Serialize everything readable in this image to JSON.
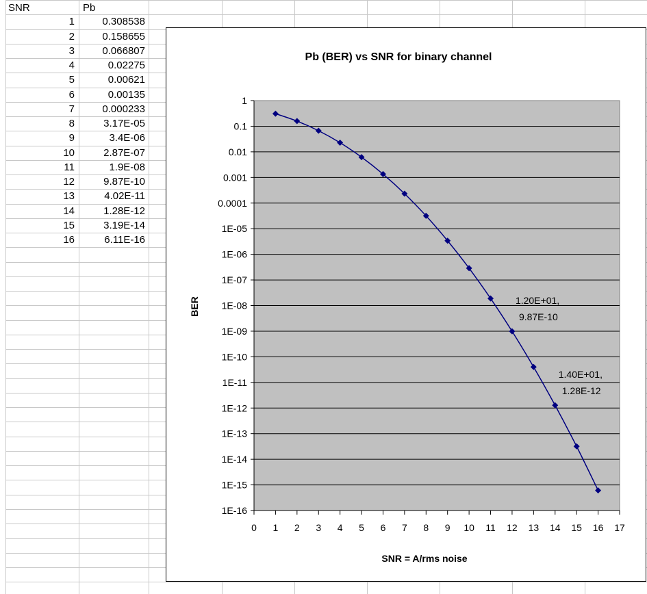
{
  "sheet": {
    "headers": {
      "a": "SNR",
      "b": "Pb"
    },
    "rows": [
      {
        "snr": "1",
        "pb": "0.308538"
      },
      {
        "snr": "2",
        "pb": "0.158655"
      },
      {
        "snr": "3",
        "pb": "0.066807"
      },
      {
        "snr": "4",
        "pb": "0.02275"
      },
      {
        "snr": "5",
        "pb": "0.00621"
      },
      {
        "snr": "6",
        "pb": "0.00135"
      },
      {
        "snr": "7",
        "pb": "0.000233"
      },
      {
        "snr": "8",
        "pb": "3.17E-05"
      },
      {
        "snr": "9",
        "pb": "3.4E-06"
      },
      {
        "snr": "10",
        "pb": "2.87E-07"
      },
      {
        "snr": "11",
        "pb": "1.9E-08"
      },
      {
        "snr": "12",
        "pb": "9.87E-10"
      },
      {
        "snr": "13",
        "pb": "4.02E-11"
      },
      {
        "snr": "14",
        "pb": "1.28E-12"
      },
      {
        "snr": "15",
        "pb": "3.19E-14"
      },
      {
        "snr": "16",
        "pb": "6.11E-16"
      }
    ]
  },
  "chart_data": {
    "type": "line",
    "title": "Pb (BER) vs SNR for binary channel",
    "xlabel": "SNR = A/rms noise",
    "ylabel": "BER",
    "y_scale": "log",
    "xlim": [
      0,
      17
    ],
    "ylim": [
      1e-16,
      1
    ],
    "x_ticks": [
      "0",
      "1",
      "2",
      "3",
      "4",
      "5",
      "6",
      "7",
      "8",
      "9",
      "10",
      "11",
      "12",
      "13",
      "14",
      "15",
      "16",
      "17"
    ],
    "y_ticks": [
      "1",
      "0.1",
      "0.01",
      "0.001",
      "0.0001",
      "1E-05",
      "1E-06",
      "1E-07",
      "1E-08",
      "1E-09",
      "1E-10",
      "1E-11",
      "1E-12",
      "1E-13",
      "1E-14",
      "1E-15",
      "1E-16"
    ],
    "grid": "horizontal major",
    "legend": "none",
    "plot_area_color": "#C0C0C0",
    "series_color": "#000080",
    "series": [
      {
        "x": [
          1,
          2,
          3,
          4,
          5,
          6,
          7,
          8,
          9,
          10,
          11,
          12,
          13,
          14,
          15,
          16
        ],
        "y": [
          0.308538,
          0.158655,
          0.066807,
          0.02275,
          0.00621,
          0.00135,
          0.000233,
          3.17e-05,
          3.4e-06,
          2.87e-07,
          1.9e-08,
          9.87e-10,
          4.02e-11,
          1.28e-12,
          3.19e-14,
          6.11e-16
        ]
      }
    ],
    "annotations": [
      {
        "x": 12,
        "y": 9.87e-10,
        "line1": "1.20E+01,",
        "line2": "9.87E-10"
      },
      {
        "x": 14,
        "y": 1.28e-12,
        "line1": "1.40E+01,",
        "line2": "1.28E-12"
      }
    ]
  }
}
